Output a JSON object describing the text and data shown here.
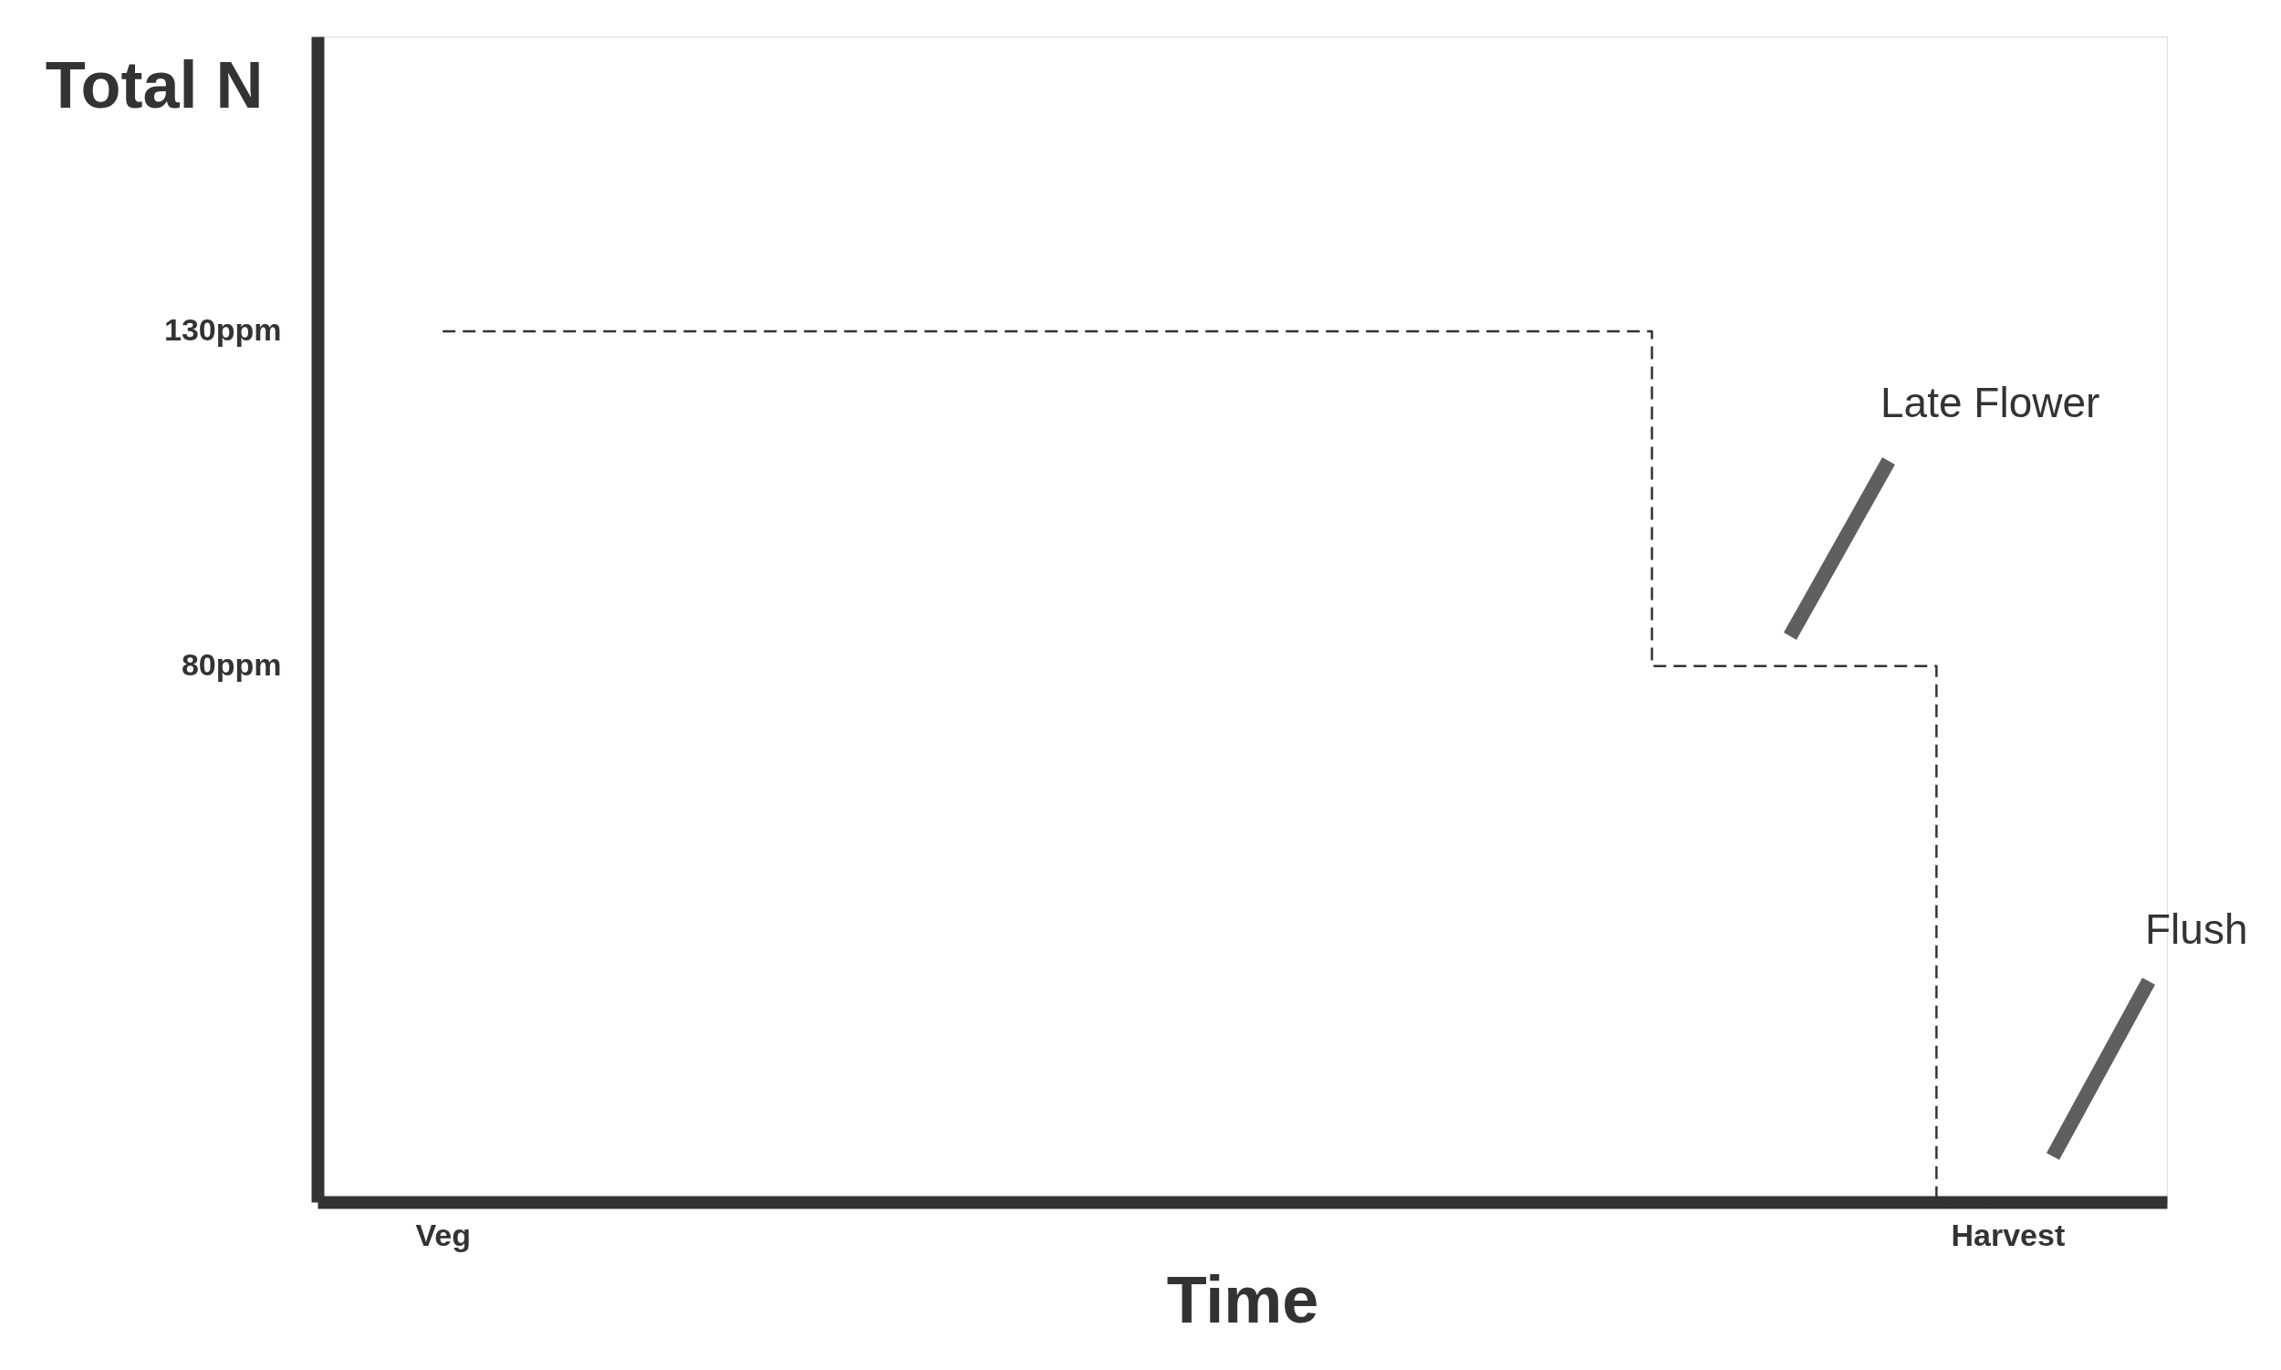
{
  "chart_data": {
    "type": "step",
    "ylabel": "Total N",
    "xlabel": "Time",
    "categories": [
      "Veg",
      null,
      null,
      null,
      null,
      null,
      null,
      null,
      null,
      null,
      null,
      "Harvest"
    ],
    "series": [
      {
        "color": "#333333",
        "values": [
          130,
          130,
          130,
          130,
          130,
          130,
          130,
          130,
          130,
          80,
          80,
          0
        ]
      }
    ],
    "line_style": "dashed",
    "marker": "none",
    "ylim": [
      0,
      174
    ],
    "yticks": [
      {
        "value": 130,
        "label": "130ppm"
      },
      {
        "value": 80,
        "label": "80ppm"
      }
    ],
    "annotations": [
      "Late Flower",
      "Flush"
    ],
    "grid": false
  }
}
